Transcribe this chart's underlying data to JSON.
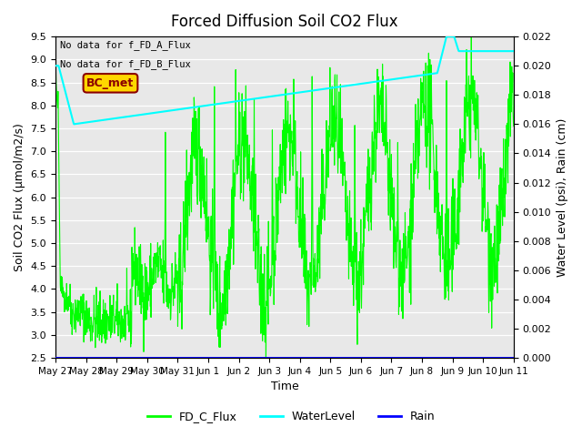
{
  "title": "Forced Diffusion Soil CO2 Flux",
  "xlabel": "Time",
  "ylabel_left": "Soil CO2 Flux (µmol/m2/s)",
  "ylabel_right": "Water Level (psi), Rain (cm)",
  "no_data_text": [
    "No data for f_FD_A_Flux",
    "No data for f_FD_B_Flux"
  ],
  "bc_met_label": "BC_met",
  "bc_met_color": "#8B0000",
  "bc_met_bg": "#FFD700",
  "ylim_left": [
    2.5,
    9.5
  ],
  "ylim_right": [
    0.0,
    0.022
  ],
  "yticks_left": [
    2.5,
    3.0,
    3.5,
    4.0,
    4.5,
    5.0,
    5.5,
    6.0,
    6.5,
    7.0,
    7.5,
    8.0,
    8.5,
    9.0,
    9.5
  ],
  "yticks_right": [
    0.0,
    0.002,
    0.004,
    0.006,
    0.008,
    0.01,
    0.012,
    0.014,
    0.016,
    0.018,
    0.02,
    0.022
  ],
  "xtick_positions": [
    0,
    1,
    2,
    3,
    4,
    5,
    6,
    7,
    8,
    9,
    10,
    11,
    12,
    13,
    14,
    15
  ],
  "xtick_labels": [
    "May 27",
    "May 28",
    "May 29",
    "May 30",
    "May 31",
    "Jun 1",
    "Jun 2",
    "Jun 3",
    "Jun 4",
    "Jun 5",
    "Jun 6",
    "Jun 7",
    "Jun 8",
    "Jun 9",
    "Jun 10",
    "Jun 11"
  ],
  "fd_c_color": "#00FF00",
  "water_color": "cyan",
  "rain_color": "blue",
  "bg_color": "#E8E8E8",
  "legend_entries": [
    "FD_C_Flux",
    "WaterLevel",
    "Rain"
  ],
  "legend_colors": [
    "#00FF00",
    "cyan",
    "blue"
  ]
}
